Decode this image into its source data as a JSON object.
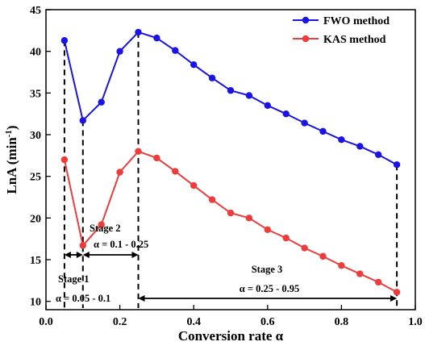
{
  "chart_data": {
    "type": "line",
    "xlabel": "Conversion rate α",
    "ylabel": "LnA (min",
    "ylabel_sup": "-1",
    "ylabel_end": ")",
    "xlim": [
      0,
      1.0
    ],
    "ylim": [
      9,
      45
    ],
    "xticks": [
      "0.0",
      "0.2",
      "0.4",
      "0.6",
      "0.8",
      "1.0"
    ],
    "yticks": [
      "10",
      "15",
      "20",
      "25",
      "30",
      "35",
      "40",
      "45"
    ],
    "legend_position": "top-right",
    "x": [
      0.05,
      0.1,
      0.15,
      0.2,
      0.25,
      0.3,
      0.35,
      0.4,
      0.45,
      0.5,
      0.55,
      0.6,
      0.65,
      0.7,
      0.75,
      0.8,
      0.85,
      0.9,
      0.95
    ],
    "series": [
      {
        "name": "FWO method",
        "color": "#1a12e6",
        "values": [
          41.3,
          31.7,
          33.9,
          40.0,
          42.3,
          41.6,
          40.1,
          38.4,
          36.8,
          35.3,
          34.7,
          33.5,
          32.5,
          31.4,
          30.4,
          29.4,
          28.6,
          27.6,
          26.4
        ]
      },
      {
        "name": "KAS method",
        "color": "#ee3b3b",
        "values": [
          27.0,
          16.7,
          19.2,
          25.5,
          28.0,
          27.2,
          25.6,
          23.9,
          22.2,
          20.6,
          20.0,
          18.6,
          17.6,
          16.4,
          15.4,
          14.3,
          13.3,
          12.3,
          11.1
        ]
      }
    ],
    "stage_boundaries": [
      0.05,
      0.1,
      0.25,
      0.95
    ],
    "annotations": {
      "stage1": "Stage 1",
      "stage1_range": "α = 0.05 - 0.1",
      "stage2": "Stage 2",
      "stage2_range": "α = 0.1 - 0.25",
      "stage3": "Stage 3",
      "stage3_range": "α = 0.25 - 0.95"
    }
  }
}
